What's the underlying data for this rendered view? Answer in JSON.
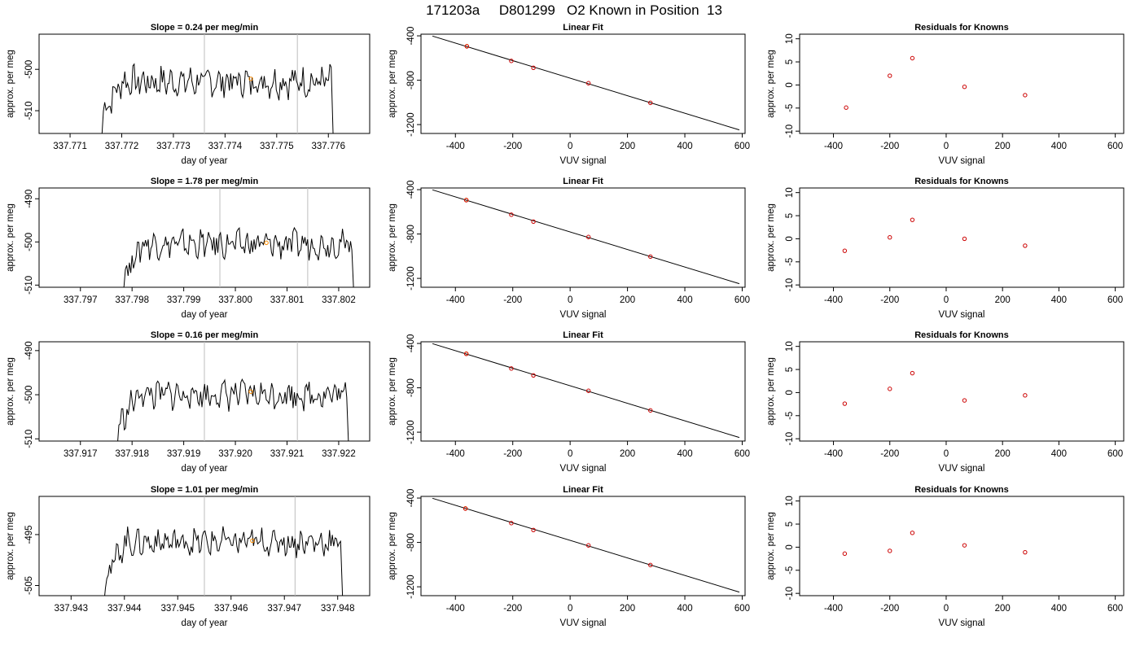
{
  "figure": {
    "title": "171203a     D801299   O2 Known in Position  13"
  },
  "chart_data": [
    {
      "type": "line",
      "panel": "trace",
      "row": 0,
      "title": "Slope =  0.24  per meg/min",
      "xlabel": "day of year",
      "ylabel": "approx. per meg",
      "xlim": [
        337.7704,
        337.7768
      ],
      "ylim": [
        -515.5,
        -491.5
      ],
      "xticks": [
        337.771,
        337.772,
        337.773,
        337.774,
        337.775,
        337.776
      ],
      "xtick_labels": [
        "337.771",
        "337.772",
        "337.773",
        "337.774",
        "337.775",
        "337.776"
      ],
      "yticks": [
        -510,
        -500
      ],
      "ytick_labels": [
        "-510",
        "-500"
      ],
      "trace_start": 337.7716,
      "trace_end": 337.7761,
      "base": -503,
      "amp": 3.0,
      "windows": [
        337.7736,
        337.7754
      ],
      "marker": {
        "x": 337.7745,
        "y": -502.3
      }
    },
    {
      "type": "line",
      "panel": "trace",
      "row": 1,
      "title": "Slope =  1.78  per meg/min",
      "xlabel": "day of year",
      "ylabel": "approx. per meg",
      "xlim": [
        337.7962,
        337.8026
      ],
      "ylim": [
        -510.5,
        -487.5
      ],
      "xticks": [
        337.797,
        337.798,
        337.799,
        337.8,
        337.801,
        337.802
      ],
      "xtick_labels": [
        "337.797",
        "337.798",
        "337.799",
        "337.800",
        "337.801",
        "337.802"
      ],
      "yticks": [
        -510,
        -500,
        -490
      ],
      "ytick_labels": [
        "-510",
        "-500",
        "-490"
      ],
      "trace_start": 337.7978,
      "trace_end": 337.8023,
      "base": -500.5,
      "amp": 2.6,
      "windows": [
        337.7997,
        337.8014
      ],
      "marker": {
        "x": 337.8006,
        "y": -500.2
      }
    },
    {
      "type": "line",
      "panel": "trace",
      "row": 2,
      "title": "Slope =  0.16  per meg/min",
      "xlabel": "day of year",
      "ylabel": "approx. per meg",
      "xlim": [
        337.9162,
        337.9226
      ],
      "ylim": [
        -510.5,
        -488.0
      ],
      "xticks": [
        337.917,
        337.918,
        337.919,
        337.92,
        337.921,
        337.922
      ],
      "xtick_labels": [
        "337.917",
        "337.918",
        "337.919",
        "337.920",
        "337.921",
        "337.922"
      ],
      "yticks": [
        -510,
        -500,
        -490
      ],
      "ytick_labels": [
        "-510",
        "-500",
        "-490"
      ],
      "trace_start": 337.9177,
      "trace_end": 337.9222,
      "base": -500,
      "amp": 2.6,
      "windows": [
        337.9194,
        337.9212
      ],
      "marker": {
        "x": 337.9203,
        "y": -499.3
      }
    },
    {
      "type": "line",
      "panel": "trace",
      "row": 3,
      "title": "Slope =  1.01  per meg/min",
      "xlabel": "day of year",
      "ylabel": "approx. per meg",
      "xlim": [
        337.9424,
        337.9486
      ],
      "ylim": [
        -507.0,
        -487.5
      ],
      "xticks": [
        337.943,
        337.944,
        337.945,
        337.946,
        337.947,
        337.948
      ],
      "xtick_labels": [
        "337.943",
        "337.944",
        "337.945",
        "337.946",
        "337.947",
        "337.948"
      ],
      "yticks": [
        -505,
        -495
      ],
      "ytick_labels": [
        "-505",
        "-495"
      ],
      "trace_start": 337.9436,
      "trace_end": 337.9481,
      "base": -496.5,
      "amp": 2.2,
      "windows": [
        337.9455,
        337.9472
      ],
      "marker": {
        "x": 337.9464,
        "y": -496.2
      }
    },
    {
      "type": "scatter",
      "panel": "fit",
      "row": 0,
      "title": "Linear Fit",
      "xlabel": "VUV signal",
      "ylabel": "approx. per meg",
      "xlim": [
        -520,
        610
      ],
      "ylim": [
        -1280,
        -385
      ],
      "xticks": [
        -400,
        -200,
        0,
        200,
        400,
        600
      ],
      "xtick_labels": [
        "-400",
        "-200",
        "0",
        "200",
        "400",
        "600"
      ],
      "yticks": [
        -1200,
        -800,
        -400
      ],
      "ytick_labels": [
        "-1200",
        "-800",
        "-400"
      ],
      "line": {
        "x": [
          -480,
          590
        ],
        "y": [
          -402,
          -1248
        ]
      },
      "points": [
        {
          "x": -360,
          "y": -493,
          "color": "#ff8c00"
        },
        {
          "x": -360,
          "y": -495,
          "color": "#cc0000"
        },
        {
          "x": -205,
          "y": -626,
          "color": "#cc0000"
        },
        {
          "x": -128,
          "y": -688,
          "color": "#cc0000"
        },
        {
          "x": 64,
          "y": -827,
          "color": "#cc0000"
        },
        {
          "x": 280,
          "y": -1004,
          "color": "#cc0000"
        }
      ]
    },
    {
      "type": "scatter",
      "panel": "fit",
      "row": 1,
      "title": "Linear Fit",
      "xlabel": "VUV signal",
      "ylabel": "approx. per meg",
      "xlim": [
        -520,
        610
      ],
      "ylim": [
        -1280,
        -385
      ],
      "xticks": [
        -400,
        -200,
        0,
        200,
        400,
        600
      ],
      "xtick_labels": [
        "-400",
        "-200",
        "0",
        "200",
        "400",
        "600"
      ],
      "yticks": [
        -1200,
        -800,
        -400
      ],
      "ytick_labels": [
        "-1200",
        "-800",
        "-400"
      ],
      "line": {
        "x": [
          -480,
          590
        ],
        "y": [
          -402,
          -1248
        ]
      },
      "points": [
        {
          "x": -362,
          "y": -493,
          "color": "#ff8c00"
        },
        {
          "x": -362,
          "y": -495,
          "color": "#cc0000"
        },
        {
          "x": -205,
          "y": -626,
          "color": "#cc0000"
        },
        {
          "x": -128,
          "y": -688,
          "color": "#cc0000"
        },
        {
          "x": 64,
          "y": -827,
          "color": "#cc0000"
        },
        {
          "x": 280,
          "y": -1004,
          "color": "#cc0000"
        }
      ]
    },
    {
      "type": "scatter",
      "panel": "fit",
      "row": 2,
      "title": "Linear Fit",
      "xlabel": "VUV signal",
      "ylabel": "approx. per meg",
      "xlim": [
        -520,
        610
      ],
      "ylim": [
        -1280,
        -385
      ],
      "xticks": [
        -400,
        -200,
        0,
        200,
        400,
        600
      ],
      "xtick_labels": [
        "-400",
        "-200",
        "0",
        "200",
        "400",
        "600"
      ],
      "yticks": [
        -1200,
        -800,
        -400
      ],
      "ytick_labels": [
        "-1200",
        "-800",
        "-400"
      ],
      "line": {
        "x": [
          -480,
          590
        ],
        "y": [
          -402,
          -1248
        ]
      },
      "points": [
        {
          "x": -362,
          "y": -492,
          "color": "#ff8c00"
        },
        {
          "x": -362,
          "y": -494,
          "color": "#cc0000"
        },
        {
          "x": -205,
          "y": -626,
          "color": "#cc0000"
        },
        {
          "x": -128,
          "y": -688,
          "color": "#cc0000"
        },
        {
          "x": 64,
          "y": -827,
          "color": "#cc0000"
        },
        {
          "x": 280,
          "y": -1004,
          "color": "#cc0000"
        }
      ]
    },
    {
      "type": "scatter",
      "panel": "fit",
      "row": 3,
      "title": "Linear Fit",
      "xlabel": "VUV signal",
      "ylabel": "approx. per meg",
      "xlim": [
        -520,
        610
      ],
      "ylim": [
        -1280,
        -385
      ],
      "xticks": [
        -400,
        -200,
        0,
        200,
        400,
        600
      ],
      "xtick_labels": [
        "-400",
        "-200",
        "0",
        "200",
        "400",
        "600"
      ],
      "yticks": [
        -1200,
        -800,
        -400
      ],
      "ytick_labels": [
        "-1200",
        "-800",
        "-400"
      ],
      "line": {
        "x": [
          -480,
          590
        ],
        "y": [
          -402,
          -1248
        ]
      },
      "points": [
        {
          "x": -365,
          "y": -493,
          "color": "#ff8c00"
        },
        {
          "x": -365,
          "y": -495,
          "color": "#cc0000"
        },
        {
          "x": -205,
          "y": -626,
          "color": "#cc0000"
        },
        {
          "x": -128,
          "y": -688,
          "color": "#cc0000"
        },
        {
          "x": 64,
          "y": -827,
          "color": "#cc0000"
        },
        {
          "x": 280,
          "y": -1004,
          "color": "#cc0000"
        }
      ]
    },
    {
      "type": "scatter",
      "panel": "residuals",
      "row": 0,
      "title": "Residuals for Knowns",
      "xlabel": "VUV signal",
      "ylabel": "approx. per meg",
      "xlim": [
        -520,
        630
      ],
      "ylim": [
        -10.5,
        11
      ],
      "xticks": [
        -400,
        -200,
        0,
        200,
        400,
        600
      ],
      "xtick_labels": [
        "-400",
        "-200",
        "0",
        "200",
        "400",
        "600"
      ],
      "yticks": [
        -10,
        -5,
        0,
        5,
        10
      ],
      "ytick_labels": [
        "-10",
        "-5",
        "0",
        "5",
        "10"
      ],
      "points": [
        {
          "x": -355,
          "y": -4.9
        },
        {
          "x": -200,
          "y": 2.0
        },
        {
          "x": -120,
          "y": 5.8
        },
        {
          "x": 65,
          "y": -0.4
        },
        {
          "x": 280,
          "y": -2.2
        }
      ]
    },
    {
      "type": "scatter",
      "panel": "residuals",
      "row": 1,
      "title": "Residuals for Knowns",
      "xlabel": "VUV signal",
      "ylabel": "approx. per meg",
      "xlim": [
        -520,
        630
      ],
      "ylim": [
        -10.5,
        11
      ],
      "xticks": [
        -400,
        -200,
        0,
        200,
        400,
        600
      ],
      "xtick_labels": [
        "-400",
        "-200",
        "0",
        "200",
        "400",
        "600"
      ],
      "yticks": [
        -10,
        -5,
        0,
        5,
        10
      ],
      "ytick_labels": [
        "-10",
        "-5",
        "0",
        "5",
        "10"
      ],
      "points": [
        {
          "x": -360,
          "y": -2.6
        },
        {
          "x": -200,
          "y": 0.3
        },
        {
          "x": -120,
          "y": 4.1
        },
        {
          "x": 65,
          "y": 0.0
        },
        {
          "x": 280,
          "y": -1.5
        }
      ]
    },
    {
      "type": "scatter",
      "panel": "residuals",
      "row": 2,
      "title": "Residuals for Knowns",
      "xlabel": "VUV signal",
      "ylabel": "approx. per meg",
      "xlim": [
        -520,
        630
      ],
      "ylim": [
        -10.5,
        11
      ],
      "xticks": [
        -400,
        -200,
        0,
        200,
        400,
        600
      ],
      "xtick_labels": [
        "-400",
        "-200",
        "0",
        "200",
        "400",
        "600"
      ],
      "yticks": [
        -10,
        -5,
        0,
        5,
        10
      ],
      "ytick_labels": [
        "-10",
        "-5",
        "0",
        "5",
        "10"
      ],
      "points": [
        {
          "x": -360,
          "y": -2.4
        },
        {
          "x": -200,
          "y": 0.8
        },
        {
          "x": -120,
          "y": 4.2
        },
        {
          "x": 65,
          "y": -1.7
        },
        {
          "x": 280,
          "y": -0.6
        }
      ]
    },
    {
      "type": "scatter",
      "panel": "residuals",
      "row": 3,
      "title": "Residuals for Knowns",
      "xlabel": "VUV signal",
      "ylabel": "approx. per meg",
      "xlim": [
        -520,
        630
      ],
      "ylim": [
        -10.5,
        11
      ],
      "xticks": [
        -400,
        -200,
        0,
        200,
        400,
        600
      ],
      "xtick_labels": [
        "-400",
        "-200",
        "0",
        "200",
        "400",
        "600"
      ],
      "yticks": [
        -10,
        -5,
        0,
        5,
        10
      ],
      "ytick_labels": [
        "-10",
        "-5",
        "0",
        "5",
        "10"
      ],
      "points": [
        {
          "x": -360,
          "y": -1.4
        },
        {
          "x": -200,
          "y": -0.8
        },
        {
          "x": -120,
          "y": 3.1
        },
        {
          "x": 65,
          "y": 0.4
        },
        {
          "x": 280,
          "y": -1.1
        }
      ]
    }
  ]
}
